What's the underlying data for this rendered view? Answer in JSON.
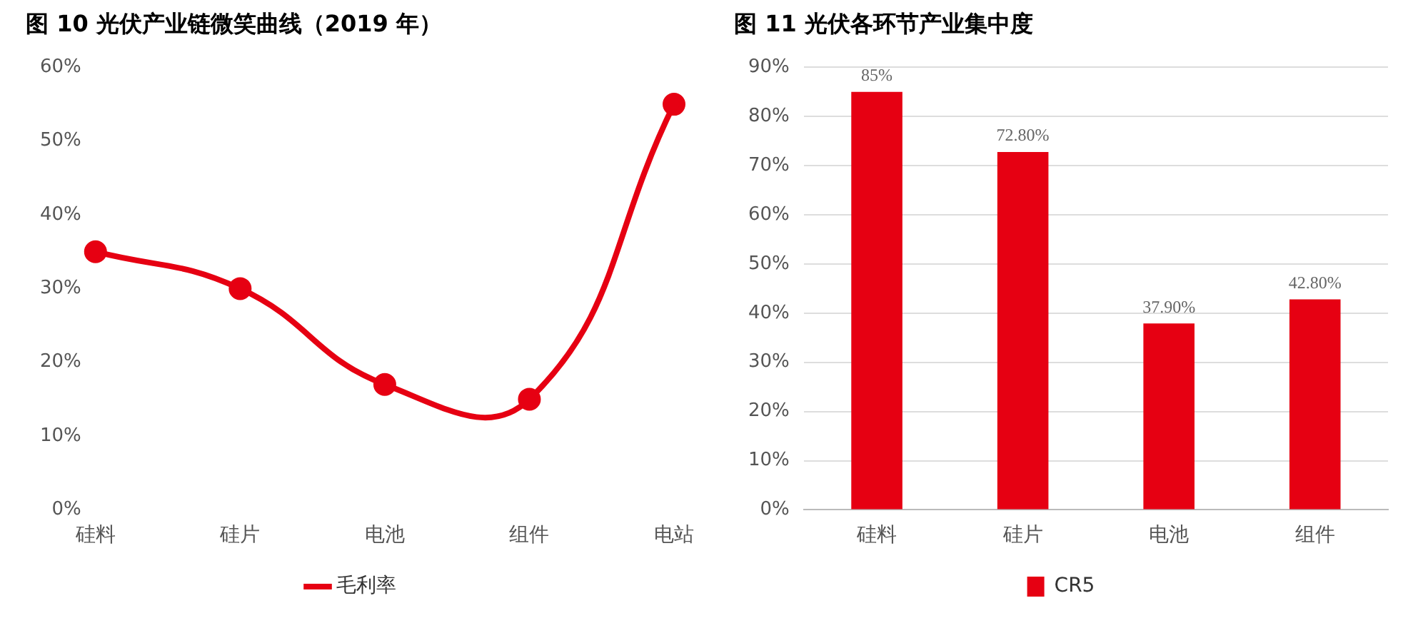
{
  "chart_data": [
    {
      "type": "line",
      "title": "图 10 光伏产业链微笑曲线（2019 年）",
      "categories": [
        "硅料",
        "硅片",
        "电池",
        "组件",
        "电站"
      ],
      "series": [
        {
          "name": "毛利率",
          "color": "#e60012",
          "values": [
            35,
            30,
            17,
            15,
            55
          ]
        }
      ],
      "ylim": [
        0,
        60
      ],
      "yticks": [
        {
          "value": 0,
          "label": "0%"
        },
        {
          "value": 10,
          "label": "10%"
        },
        {
          "value": 20,
          "label": "20%"
        },
        {
          "value": 30,
          "label": "30%"
        },
        {
          "value": 40,
          "label": "40%"
        },
        {
          "value": 50,
          "label": "50%"
        },
        {
          "value": 60,
          "label": "60%"
        }
      ],
      "grid": false,
      "legend": "bottom",
      "marker": "circle",
      "line_style": "solid"
    },
    {
      "type": "bar",
      "title": "图 11 光伏各环节产业集中度",
      "categories": [
        "硅料",
        "硅片",
        "电池",
        "组件"
      ],
      "series": [
        {
          "name": "CR5",
          "color": "#e60012",
          "values": [
            85,
            72.8,
            37.9,
            42.8
          ],
          "value_labels": [
            "85%",
            "72.80%",
            "37.90%",
            "42.80%"
          ]
        }
      ],
      "ylim": [
        0,
        90
      ],
      "yticks": [
        {
          "value": 0,
          "label": "0%"
        },
        {
          "value": 10,
          "label": "10%"
        },
        {
          "value": 20,
          "label": "20%"
        },
        {
          "value": 30,
          "label": "30%"
        },
        {
          "value": 40,
          "label": "40%"
        },
        {
          "value": 50,
          "label": "50%"
        },
        {
          "value": 60,
          "label": "60%"
        },
        {
          "value": 70,
          "label": "70%"
        },
        {
          "value": 80,
          "label": "80%"
        },
        {
          "value": 90,
          "label": "90%"
        }
      ],
      "grid": "y",
      "legend": "bottom"
    }
  ]
}
